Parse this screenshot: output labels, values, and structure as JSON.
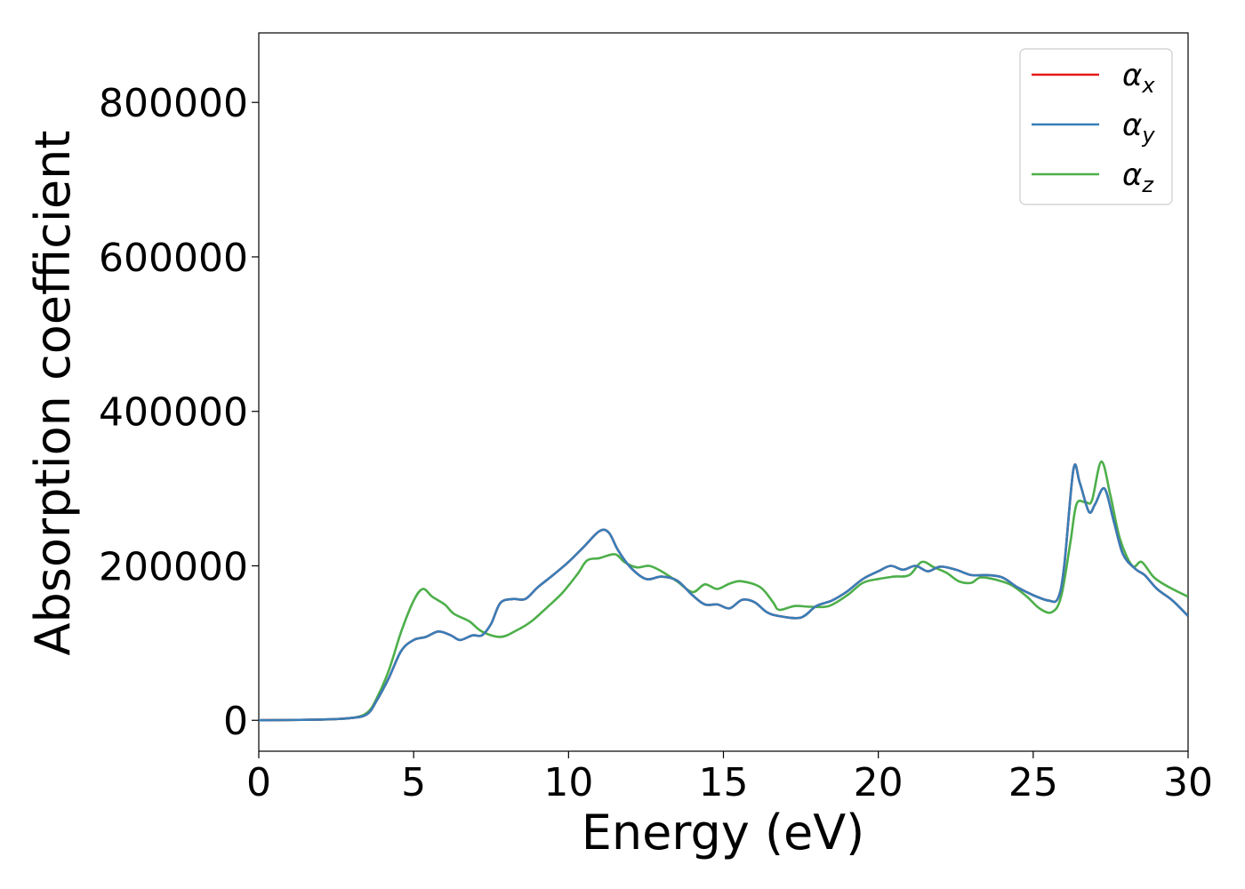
{
  "chart_data": {
    "type": "line",
    "title": "",
    "xlabel": "Energy (eV)",
    "ylabel": "Absorption coefficient",
    "xlim": [
      0,
      30
    ],
    "ylim": [
      -40000,
      890000
    ],
    "xticks": [
      0,
      5,
      10,
      15,
      20,
      25,
      30
    ],
    "yticks": [
      0,
      200000,
      400000,
      600000,
      800000
    ],
    "xtick_labels": [
      "0",
      "5",
      "10",
      "15",
      "20",
      "25",
      "30"
    ],
    "ytick_labels": [
      "0",
      "200000",
      "400000",
      "600000",
      "800000"
    ],
    "grid": false,
    "legend_position": "top-right",
    "colors": {
      "alpha_x": "#e41a1c",
      "alpha_y": "#377eb8",
      "alpha_z": "#4daf4a"
    },
    "series": [
      {
        "name": "αx",
        "legend_symbol": "α",
        "legend_subscript": "x",
        "color": "#e41a1c",
        "points": [
          [
            0,
            0
          ],
          [
            2,
            1000
          ],
          [
            3,
            3000
          ],
          [
            3.5,
            8000
          ],
          [
            3.8,
            25000
          ],
          [
            4.2,
            55000
          ],
          [
            4.6,
            90000
          ],
          [
            5,
            104000
          ],
          [
            5.4,
            108000
          ],
          [
            5.8,
            115000
          ],
          [
            6.2,
            110000
          ],
          [
            6.5,
            104000
          ],
          [
            6.9,
            110000
          ],
          [
            7.2,
            110000
          ],
          [
            7.5,
            125000
          ],
          [
            7.8,
            152000
          ],
          [
            8.2,
            157000
          ],
          [
            8.6,
            157000
          ],
          [
            9,
            172000
          ],
          [
            9.5,
            188000
          ],
          [
            10,
            205000
          ],
          [
            10.5,
            225000
          ],
          [
            11,
            245000
          ],
          [
            11.3,
            243000
          ],
          [
            11.6,
            220000
          ],
          [
            12,
            198000
          ],
          [
            12.5,
            183000
          ],
          [
            13,
            186000
          ],
          [
            13.5,
            181000
          ],
          [
            14,
            162000
          ],
          [
            14.4,
            150000
          ],
          [
            14.8,
            150000
          ],
          [
            15.2,
            145000
          ],
          [
            15.6,
            156000
          ],
          [
            16,
            153000
          ],
          [
            16.4,
            140000
          ],
          [
            16.8,
            135000
          ],
          [
            17.5,
            133000
          ],
          [
            18,
            148000
          ],
          [
            18.5,
            155000
          ],
          [
            19,
            167000
          ],
          [
            19.5,
            183000
          ],
          [
            20,
            193000
          ],
          [
            20.4,
            200000
          ],
          [
            20.8,
            195000
          ],
          [
            21.2,
            200000
          ],
          [
            21.6,
            193000
          ],
          [
            22,
            199000
          ],
          [
            22.5,
            195000
          ],
          [
            23,
            188000
          ],
          [
            23.5,
            188000
          ],
          [
            24,
            185000
          ],
          [
            24.5,
            172000
          ],
          [
            25,
            162000
          ],
          [
            25.5,
            155000
          ],
          [
            25.8,
            158000
          ],
          [
            26,
            200000
          ],
          [
            26.3,
            325000
          ],
          [
            26.5,
            308000
          ],
          [
            26.8,
            270000
          ],
          [
            27,
            280000
          ],
          [
            27.3,
            300000
          ],
          [
            27.6,
            258000
          ],
          [
            27.9,
            215000
          ],
          [
            28.3,
            196000
          ],
          [
            28.6,
            188000
          ],
          [
            29,
            170000
          ],
          [
            29.5,
            155000
          ],
          [
            30,
            135000
          ]
        ]
      },
      {
        "name": "αy",
        "legend_symbol": "α",
        "legend_subscript": "y",
        "color": "#377eb8",
        "points": [
          [
            0,
            0
          ],
          [
            2,
            1000
          ],
          [
            3,
            3000
          ],
          [
            3.5,
            8000
          ],
          [
            3.8,
            25000
          ],
          [
            4.2,
            55000
          ],
          [
            4.6,
            90000
          ],
          [
            5,
            104000
          ],
          [
            5.4,
            108000
          ],
          [
            5.8,
            115000
          ],
          [
            6.2,
            110000
          ],
          [
            6.5,
            104000
          ],
          [
            6.9,
            110000
          ],
          [
            7.2,
            110000
          ],
          [
            7.5,
            125000
          ],
          [
            7.8,
            152000
          ],
          [
            8.2,
            157000
          ],
          [
            8.6,
            157000
          ],
          [
            9,
            172000
          ],
          [
            9.5,
            188000
          ],
          [
            10,
            205000
          ],
          [
            10.5,
            225000
          ],
          [
            11,
            245000
          ],
          [
            11.3,
            243000
          ],
          [
            11.6,
            220000
          ],
          [
            12,
            198000
          ],
          [
            12.5,
            183000
          ],
          [
            13,
            186000
          ],
          [
            13.5,
            181000
          ],
          [
            14,
            162000
          ],
          [
            14.4,
            150000
          ],
          [
            14.8,
            150000
          ],
          [
            15.2,
            145000
          ],
          [
            15.6,
            156000
          ],
          [
            16,
            153000
          ],
          [
            16.4,
            140000
          ],
          [
            16.8,
            135000
          ],
          [
            17.5,
            133000
          ],
          [
            18,
            148000
          ],
          [
            18.5,
            155000
          ],
          [
            19,
            167000
          ],
          [
            19.5,
            183000
          ],
          [
            20,
            193000
          ],
          [
            20.4,
            200000
          ],
          [
            20.8,
            195000
          ],
          [
            21.2,
            200000
          ],
          [
            21.6,
            193000
          ],
          [
            22,
            199000
          ],
          [
            22.5,
            195000
          ],
          [
            23,
            188000
          ],
          [
            23.5,
            188000
          ],
          [
            24,
            185000
          ],
          [
            24.5,
            172000
          ],
          [
            25,
            162000
          ],
          [
            25.5,
            155000
          ],
          [
            25.8,
            158000
          ],
          [
            26,
            200000
          ],
          [
            26.3,
            325000
          ],
          [
            26.5,
            308000
          ],
          [
            26.8,
            270000
          ],
          [
            27,
            280000
          ],
          [
            27.3,
            300000
          ],
          [
            27.6,
            258000
          ],
          [
            27.9,
            215000
          ],
          [
            28.3,
            196000
          ],
          [
            28.6,
            188000
          ],
          [
            29,
            170000
          ],
          [
            29.5,
            155000
          ],
          [
            30,
            135000
          ]
        ]
      },
      {
        "name": "αz",
        "legend_symbol": "α",
        "legend_subscript": "z",
        "color": "#4daf4a",
        "points": [
          [
            0,
            0
          ],
          [
            2,
            1000
          ],
          [
            3,
            3000
          ],
          [
            3.5,
            10000
          ],
          [
            3.8,
            28000
          ],
          [
            4.2,
            65000
          ],
          [
            4.6,
            115000
          ],
          [
            5,
            155000
          ],
          [
            5.3,
            170000
          ],
          [
            5.6,
            160000
          ],
          [
            6,
            150000
          ],
          [
            6.3,
            138000
          ],
          [
            6.8,
            128000
          ],
          [
            7.2,
            115000
          ],
          [
            7.8,
            108000
          ],
          [
            8.3,
            116000
          ],
          [
            8.8,
            128000
          ],
          [
            9.3,
            146000
          ],
          [
            9.8,
            165000
          ],
          [
            10.3,
            190000
          ],
          [
            10.6,
            207000
          ],
          [
            11,
            210000
          ],
          [
            11.5,
            215000
          ],
          [
            11.8,
            205000
          ],
          [
            12.2,
            198000
          ],
          [
            12.6,
            200000
          ],
          [
            13,
            193000
          ],
          [
            13.5,
            180000
          ],
          [
            14,
            166000
          ],
          [
            14.4,
            176000
          ],
          [
            14.8,
            170000
          ],
          [
            15.2,
            177000
          ],
          [
            15.6,
            180000
          ],
          [
            16.2,
            172000
          ],
          [
            16.6,
            153000
          ],
          [
            16.8,
            143000
          ],
          [
            17.3,
            148000
          ],
          [
            17.8,
            147000
          ],
          [
            18.4,
            148000
          ],
          [
            19,
            162000
          ],
          [
            19.5,
            178000
          ],
          [
            20,
            183000
          ],
          [
            20.5,
            186000
          ],
          [
            21,
            188000
          ],
          [
            21.4,
            205000
          ],
          [
            21.8,
            198000
          ],
          [
            22.2,
            191000
          ],
          [
            22.6,
            180000
          ],
          [
            23,
            178000
          ],
          [
            23.3,
            185000
          ],
          [
            23.8,
            182000
          ],
          [
            24.3,
            175000
          ],
          [
            24.8,
            160000
          ],
          [
            25.2,
            145000
          ],
          [
            25.6,
            140000
          ],
          [
            25.9,
            160000
          ],
          [
            26.2,
            230000
          ],
          [
            26.4,
            280000
          ],
          [
            26.7,
            282000
          ],
          [
            26.9,
            285000
          ],
          [
            27.2,
            335000
          ],
          [
            27.5,
            290000
          ],
          [
            27.8,
            235000
          ],
          [
            28.2,
            200000
          ],
          [
            28.5,
            205000
          ],
          [
            28.9,
            185000
          ],
          [
            29.4,
            172000
          ],
          [
            30,
            160000
          ]
        ]
      }
    ]
  }
}
